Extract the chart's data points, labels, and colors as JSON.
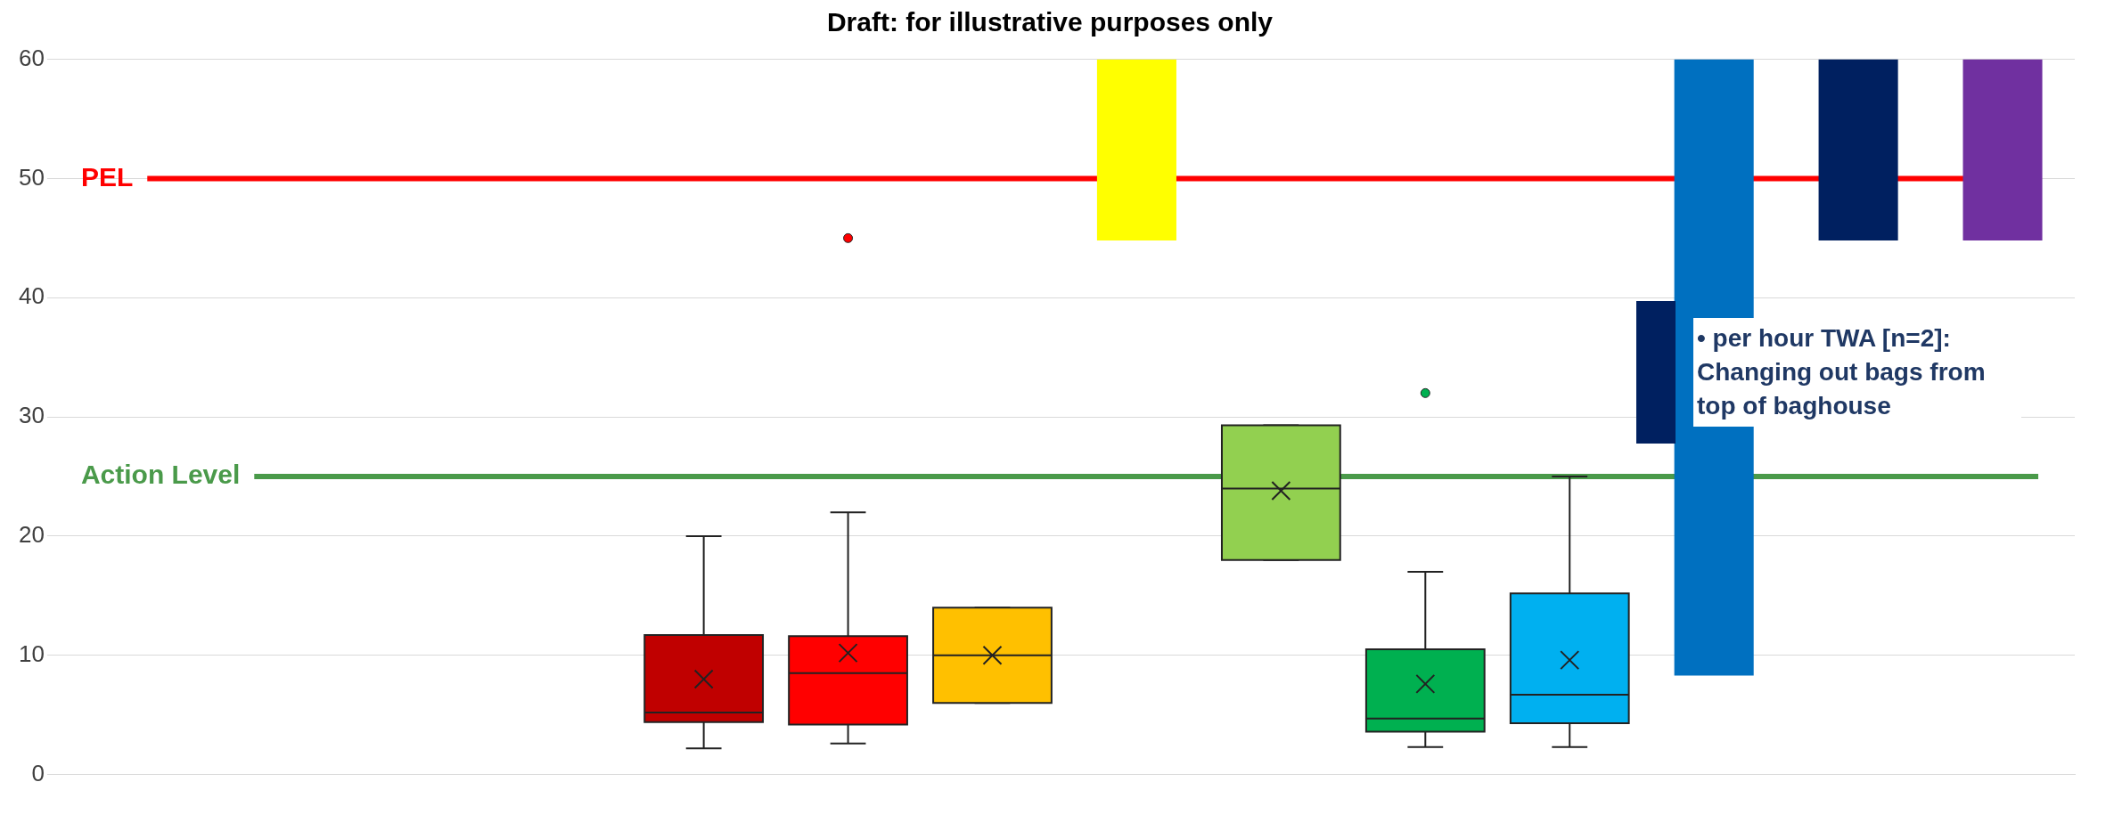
{
  "chart_data": {
    "type": "box",
    "categories": [
      null,
      null,
      null,
      null,
      null,
      null,
      null,
      null,
      null,
      null,
      null,
      null,
      null,
      null
    ],
    "ylim": [
      0,
      60
    ],
    "yticks": [
      0,
      10,
      20,
      30,
      40,
      50,
      60
    ],
    "grid": "y",
    "legend": "right",
    "annotations": [
      "Draft: for illustrative purposes only"
    ],
    "ref_lines": [
      {
        "axis": "y",
        "value": 50,
        "label": "PEL",
        "color": "#ff0000"
      },
      {
        "axis": "y",
        "value": 25,
        "label": "Action Level",
        "color": "#4a9a4a"
      }
    ],
    "series": [
      {
        "colors": [
          null,
          null,
          null,
          null,
          "#c00000",
          "#ff0000",
          "#ffc000",
          null,
          "#92d050",
          "#00b050",
          "#00b0f0",
          null,
          null,
          null
        ],
        "boxes": [
          null,
          null,
          null,
          null,
          {
            "low": 2.2,
            "q1": 4.4,
            "median": 5.2,
            "q3": 11.7,
            "high": 20,
            "mean": 8
          },
          {
            "low": 2.6,
            "q1": 4.2,
            "median": 8.5,
            "q3": 11.6,
            "high": 22,
            "mean": 10.2,
            "outliers": [
              45
            ]
          },
          {
            "low": 6,
            "q1": 6,
            "median": 10,
            "q3": 14,
            "high": 14,
            "mean": 10
          },
          null,
          {
            "low": 18,
            "q1": 18,
            "median": 24,
            "q3": 29.3,
            "high": 29.3,
            "mean": 23.8
          },
          {
            "low": 2.3,
            "q1": 3.6,
            "median": 4.7,
            "q3": 10.5,
            "high": 17,
            "mean": 7.6,
            "outliers": [
              32
            ]
          },
          {
            "low": 2.3,
            "q1": 4.3,
            "median": 6.7,
            "q3": 15.2,
            "high": 25,
            "mean": 9.6
          },
          null,
          null,
          null
        ]
      },
      {
        "type": "bar",
        "color": "#ffff00",
        "values": [
          null,
          null,
          null,
          null,
          null,
          null,
          null,
          15.2,
          null,
          null,
          null,
          null,
          null,
          null
        ],
        "base": [
          null,
          null,
          null,
          null,
          null,
          null,
          null,
          44.8,
          null,
          null,
          null,
          null,
          null,
          null
        ]
      },
      {
        "type": "bar",
        "color": "#0070c0",
        "values": [
          null,
          null,
          null,
          null,
          null,
          null,
          null,
          null,
          null,
          null,
          null,
          51.7,
          null,
          null
        ],
        "base": [
          null,
          null,
          null,
          null,
          null,
          null,
          null,
          null,
          null,
          null,
          null,
          8.3,
          null,
          null
        ]
      },
      {
        "type": "bar",
        "name": "• per hour TWA [n=2]: Changing out bags from top of baghouse",
        "color": "#002060",
        "values": [
          null,
          null,
          null,
          null,
          null,
          null,
          null,
          null,
          null,
          null,
          null,
          null,
          15.2,
          null
        ],
        "base": [
          null,
          null,
          null,
          null,
          null,
          null,
          null,
          null,
          null,
          null,
          null,
          null,
          44.8,
          null
        ]
      },
      {
        "type": "bar",
        "color": "#7030a0",
        "values": [
          null,
          null,
          null,
          null,
          null,
          null,
          null,
          null,
          null,
          null,
          null,
          null,
          null,
          15.2
        ],
        "base": [
          null,
          null,
          null,
          null,
          null,
          null,
          null,
          null,
          null,
          null,
          null,
          null,
          null,
          44.8
        ]
      }
    ]
  }
}
